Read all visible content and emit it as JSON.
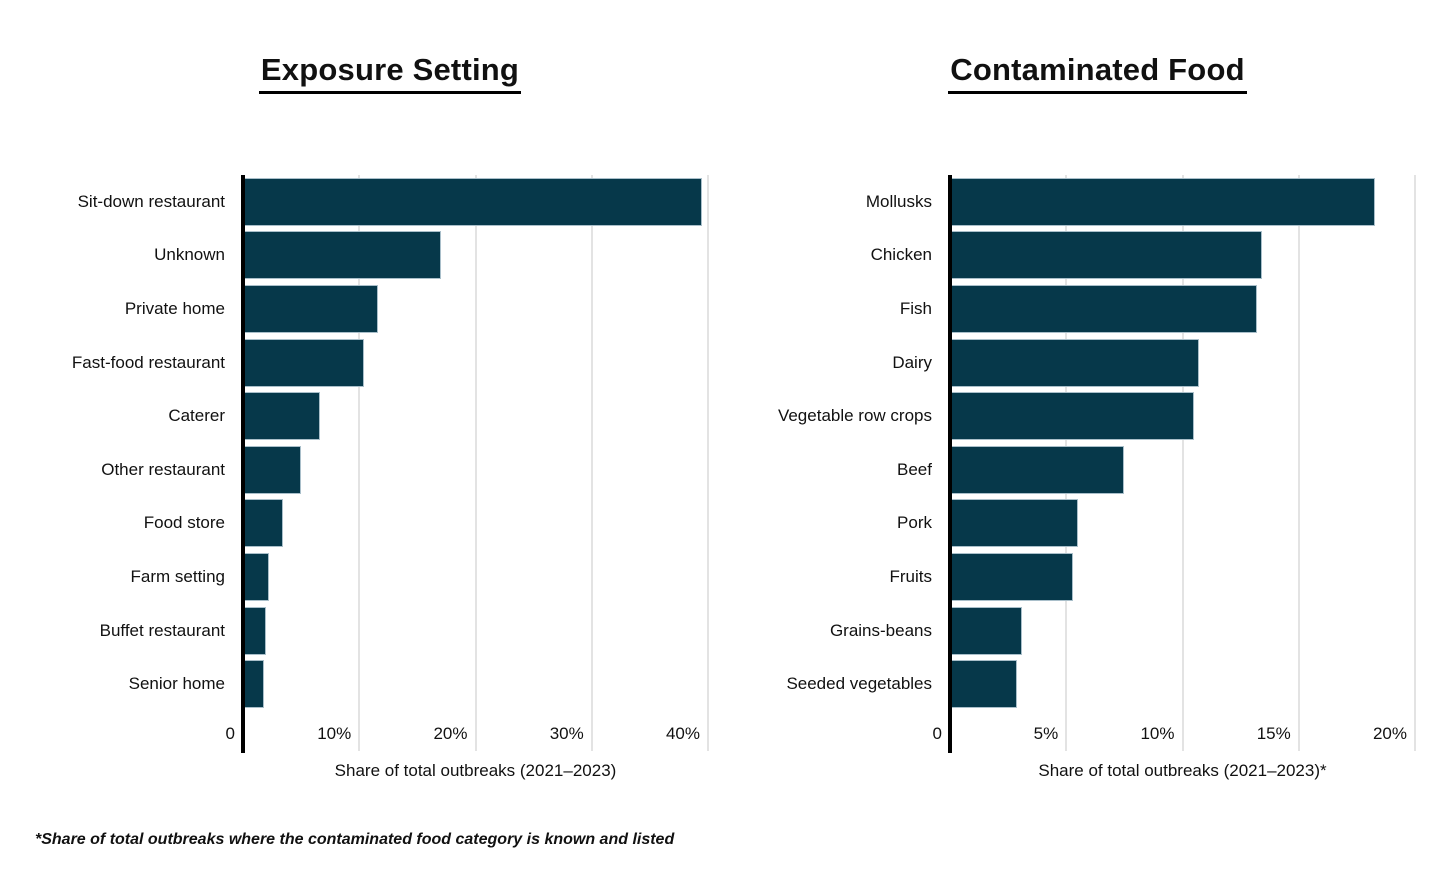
{
  "page": {
    "footnote": "*Share of total outbreaks where the contaminated food category is known and listed"
  },
  "colors": {
    "bar": "#06384A",
    "bar_border": "#A9BFCA",
    "gridline": "#E3E3E3",
    "axis": "#000000",
    "text": "#111111"
  },
  "chart_data": [
    {
      "type": "bar",
      "orientation": "horizontal",
      "title": "Exposure Setting",
      "xlabel": "Share of total outbreaks (2021–2023)",
      "xlim": [
        0,
        40
      ],
      "grid": "vertical",
      "legend": "none",
      "categories": [
        "Sit-down restaurant",
        "Unknown",
        "Private home",
        "Fast-food restaurant",
        "Caterer",
        "Other restaurant",
        "Food store",
        "Farm setting",
        "Buffet restaurant",
        "Senior home"
      ],
      "values": [
        39.5,
        17.0,
        11.6,
        10.4,
        6.6,
        5.0,
        3.4,
        2.2,
        2.0,
        1.8
      ],
      "xticks": [
        {
          "value": 0,
          "label": "0"
        },
        {
          "value": 10,
          "label": "10%"
        },
        {
          "value": 20,
          "label": "20%"
        },
        {
          "value": 30,
          "label": "30%"
        },
        {
          "value": 40,
          "label": "40%"
        }
      ]
    },
    {
      "type": "bar",
      "orientation": "horizontal",
      "title": "Contaminated Food",
      "xlabel": "Share of total outbreaks (2021–2023)*",
      "xlim": [
        0,
        20
      ],
      "grid": "vertical",
      "legend": "none",
      "categories": [
        "Mollusks",
        "Chicken",
        "Fish",
        "Dairy",
        "Vegetable row crops",
        "Beef",
        "Pork",
        "Fruits",
        "Grains-beans",
        "Seeded vegetables"
      ],
      "values": [
        18.3,
        13.4,
        13.2,
        10.7,
        10.5,
        7.5,
        5.5,
        5.3,
        3.1,
        2.9
      ],
      "xticks": [
        {
          "value": 0,
          "label": "0"
        },
        {
          "value": 5,
          "label": "5%"
        },
        {
          "value": 10,
          "label": "10%"
        },
        {
          "value": 15,
          "label": "15%"
        },
        {
          "value": 20,
          "label": "20%"
        }
      ]
    }
  ]
}
